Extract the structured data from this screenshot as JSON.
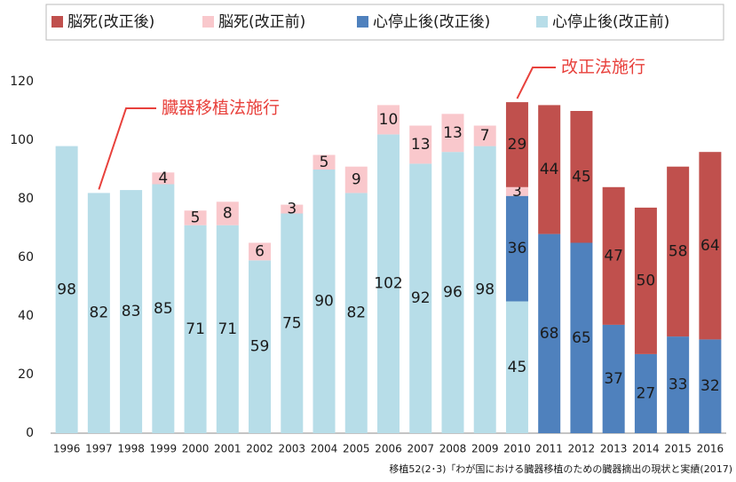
{
  "chart_data": {
    "type": "bar",
    "stacked": true,
    "categories": [
      "1996",
      "1997",
      "1998",
      "1999",
      "2000",
      "2001",
      "2002",
      "2003",
      "2004",
      "2005",
      "2006",
      "2007",
      "2008",
      "2009",
      "2010",
      "2011",
      "2012",
      "2013",
      "2014",
      "2015",
      "2016"
    ],
    "series": [
      {
        "name": "脳死(改正後)",
        "color": "#c0504d",
        "values": [
          null,
          null,
          null,
          null,
          null,
          null,
          null,
          null,
          null,
          null,
          null,
          null,
          null,
          null,
          29,
          44,
          45,
          47,
          50,
          58,
          64
        ]
      },
      {
        "name": "脳死(改正前)",
        "color": "#f9c8cc",
        "values": [
          null,
          null,
          null,
          4,
          5,
          8,
          6,
          3,
          5,
          9,
          10,
          13,
          13,
          7,
          3,
          null,
          null,
          null,
          null,
          null,
          null
        ]
      },
      {
        "name": "心停止後(改正後)",
        "color": "#4f81bd",
        "values": [
          null,
          null,
          null,
          null,
          null,
          null,
          null,
          null,
          null,
          null,
          null,
          null,
          null,
          null,
          36,
          68,
          65,
          37,
          27,
          33,
          32
        ]
      },
      {
        "name": "心停止後(改正前)",
        "color": "#b7dde8",
        "values": [
          98,
          82,
          83,
          85,
          71,
          71,
          59,
          75,
          90,
          82,
          102,
          92,
          96,
          98,
          45,
          null,
          null,
          null,
          null,
          null,
          null
        ]
      }
    ],
    "ylim": [
      0,
      120
    ],
    "yticks": [
      0,
      20,
      40,
      60,
      80,
      100,
      120
    ],
    "annotations": [
      {
        "text": "臓器移植法施行",
        "x": "1997"
      },
      {
        "text": "改正法施行",
        "x": "2010"
      }
    ],
    "source": "移植52(2･3)「わが国における臓器移植のための臓器摘出の現状と実績(2017)"
  }
}
